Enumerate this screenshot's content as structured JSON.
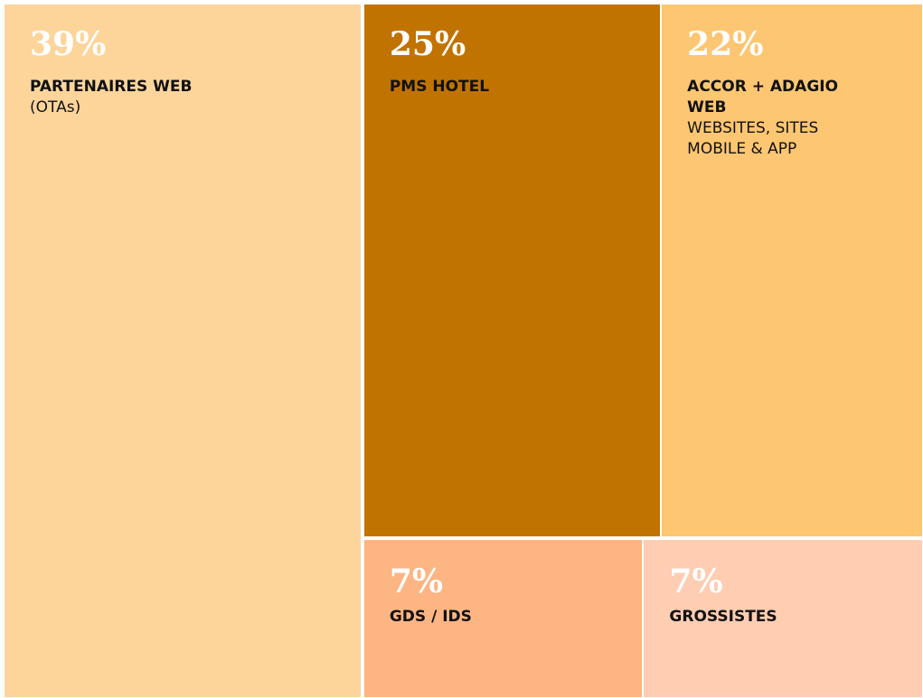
{
  "chart_data": {
    "type": "treemap",
    "items": [
      {
        "name": "PARTENAIRES WEB",
        "description": "(OTAs)",
        "value": 39,
        "value_label": "39%",
        "color": "#fdd59a"
      },
      {
        "name": "PMS HOTEL",
        "value": 25,
        "value_label": "25%",
        "color": "#c17300"
      },
      {
        "name": "ACCOR + ADAGIO WEB",
        "description": "WEBSITES, SITES MOBILE & APP",
        "value": 22,
        "value_label": "22%",
        "color": "#fdc672"
      },
      {
        "name": "GDS / IDS",
        "value": 7,
        "value_label": "7%",
        "color": "#fdb583"
      },
      {
        "name": "GROSSISTES",
        "value": 7,
        "value_label": "7%",
        "color": "#fecdb2"
      }
    ]
  }
}
